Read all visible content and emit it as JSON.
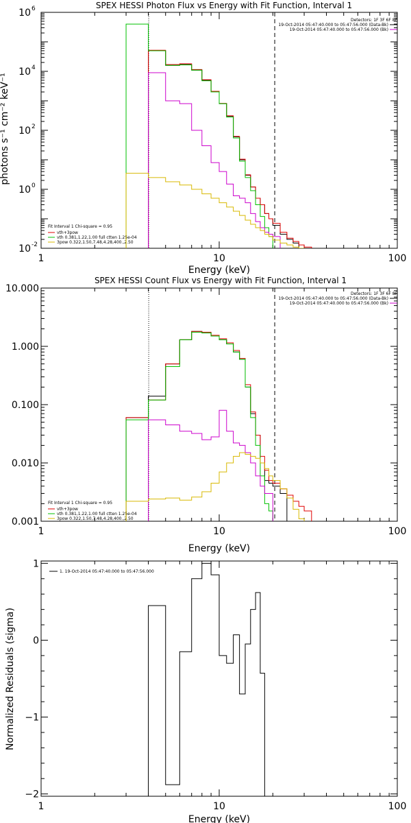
{
  "chart_data": [
    {
      "type": "line",
      "title": "SPEX HESSI Photon Flux vs Energy with Fit Function, Interval 1",
      "xlabel": "Energy (keV)",
      "ylabel": "photons s⁻¹ cm⁻² keV⁻¹",
      "xscale": "log",
      "yscale": "log",
      "xlim": [
        1,
        100
      ],
      "ylim": [
        0.01,
        1000000
      ],
      "xticks": [
        {
          "v": 1,
          "label": "1"
        },
        {
          "v": 10,
          "label": "10"
        },
        {
          "v": 100,
          "label": "100"
        }
      ],
      "yticks": [
        {
          "v": 0.01,
          "base": "10",
          "exp": "-2"
        },
        {
          "v": 1,
          "base": "10",
          "exp": "0"
        },
        {
          "v": 100,
          "base": "10",
          "exp": "2"
        },
        {
          "v": 10000,
          "base": "10",
          "exp": "4"
        },
        {
          "v": 1000000,
          "base": "10",
          "exp": "6"
        }
      ],
      "legend_right": {
        "title": "Detectors: 1F 3F 6F 8F",
        "entries": [
          {
            "label": "19-Oct-2014 05:47:40.000 to 05:47:56.000 (Data-Bk)",
            "color": "#000000"
          },
          {
            "label": "19-Oct-2014 05:47:40.000 to 05:47:56.000 (Bk)",
            "color": "#cc00cc"
          }
        ]
      },
      "legend_left": {
        "title": "Fit Interval  1    Chi-square = 0.95",
        "entries": [
          {
            "label": "vth+3pow",
            "color": "#e00000"
          },
          {
            "label": "vth 0.381,1.22,1.00  full ctten 1.25e-04",
            "color": "#00c000"
          },
          {
            "label": "3pow 0.322,1.50,7.48,4.28,400.,2.50",
            "color": "#d8b800"
          }
        ]
      },
      "vlines": [
        {
          "x": 4.02,
          "style": "dotted"
        },
        {
          "x": 20.5,
          "style": "dashed"
        }
      ],
      "bin_edges": [
        3.0,
        4.0,
        5.0,
        6.0,
        7.0,
        8.0,
        9.0,
        10.0,
        11.0,
        12.0,
        13.0,
        14.0,
        15.0,
        16.0,
        17.0,
        18.0,
        19.0,
        20.0,
        22.0,
        24.0,
        26.0,
        28.0,
        30.0,
        33.0,
        36.0,
        40.0
      ],
      "series": [
        {
          "name": "Data-Bk",
          "color": "#000000",
          "values": [
            null,
            50000,
            16000,
            17000,
            11000,
            5000,
            2000,
            800,
            300,
            60,
            10,
            3.0,
            1.2,
            0.5,
            0.3,
            0.15,
            0.1,
            0.06,
            0.03,
            0.02,
            0.015,
            null,
            null,
            null,
            null
          ]
        },
        {
          "name": "vth+3pow",
          "color": "#e00000",
          "values": [
            null,
            52000,
            17000,
            18000,
            11500,
            5200,
            2100,
            820,
            310,
            62,
            10.5,
            3.1,
            1.2,
            0.5,
            0.3,
            0.15,
            0.1,
            0.07,
            0.035,
            0.022,
            0.017,
            0.013,
            0.011,
            null,
            null
          ]
        },
        {
          "name": "vth",
          "color": "#00c000",
          "values": [
            400000,
            50000,
            16000,
            16500,
            11000,
            4800,
            2000,
            800,
            280,
            55,
            9,
            2.5,
            0.9,
            0.3,
            0.12,
            0.05,
            0.025,
            null,
            null,
            null,
            null,
            null,
            null,
            null,
            null
          ]
        },
        {
          "name": "Bk",
          "color": "#cc00cc",
          "values": [
            null,
            9000,
            1000,
            800,
            100,
            30,
            8,
            4,
            1.5,
            0.6,
            0.5,
            0.35,
            0.15,
            0.08,
            0.05,
            0.035,
            0.03,
            0.025,
            null,
            null,
            null,
            null,
            null,
            null,
            null
          ]
        },
        {
          "name": "3pow",
          "color": "#d8b800",
          "values": [
            3.5,
            2.5,
            1.8,
            1.4,
            1.0,
            0.7,
            0.5,
            0.35,
            0.25,
            0.18,
            0.13,
            0.09,
            0.065,
            0.05,
            0.04,
            0.03,
            0.025,
            0.019,
            0.015,
            0.013,
            0.011,
            0.01,
            null,
            null,
            null
          ]
        }
      ]
    },
    {
      "type": "line",
      "title": "SPEX HESSI Count Flux vs Energy with Fit Function, Interval 1",
      "xlabel": "Energy (keV)",
      "ylabel": "",
      "xscale": "log",
      "yscale": "log",
      "xlim": [
        1,
        100
      ],
      "ylim": [
        0.001,
        10
      ],
      "xticks": [
        {
          "v": 1,
          "label": "1"
        },
        {
          "v": 10,
          "label": "10"
        },
        {
          "v": 100,
          "label": "100"
        }
      ],
      "yticks": [
        {
          "v": 0.001,
          "label": "0.001"
        },
        {
          "v": 0.01,
          "label": "0.010"
        },
        {
          "v": 0.1,
          "label": "0.100"
        },
        {
          "v": 1,
          "label": "1.000"
        },
        {
          "v": 10,
          "label": "10.000"
        }
      ],
      "legend_right": {
        "title": "Detectors: 1F 3F 6F 8F",
        "entries": [
          {
            "label": "19-Oct-2014 05:47:40.000 to 05:47:56.000 (Data-Bk)",
            "color": "#000000"
          },
          {
            "label": "19-Oct-2014 05:47:40.000 to 05:47:56.000 (Bk)",
            "color": "#cc00cc"
          }
        ]
      },
      "legend_left": {
        "title": "Fit Interval  1    Chi-square = 0.95",
        "entries": [
          {
            "label": "vth+3pow",
            "color": "#e00000"
          },
          {
            "label": "vth 0.381,1.22,1.00  full ctten 1.25e-04",
            "color": "#00c000"
          },
          {
            "label": "3pow 0.322,1.50,7.48,4.28,400.,2.50",
            "color": "#d8b800"
          }
        ]
      },
      "vlines": [
        {
          "x": 4.02,
          "style": "dotted"
        },
        {
          "x": 20.5,
          "style": "dashed"
        }
      ],
      "bin_edges": [
        3.0,
        4.0,
        5.0,
        6.0,
        7.0,
        8.0,
        9.0,
        10.0,
        11.0,
        12.0,
        13.0,
        14.0,
        15.0,
        16.0,
        17.0,
        18.0,
        19.0,
        20.0,
        22.0,
        24.0,
        26.0,
        28.0,
        30.0,
        33.0,
        36.0,
        40.0
      ],
      "series": [
        {
          "name": "Data-Bk",
          "color": "#000000",
          "values": [
            0.06,
            0.14,
            0.5,
            1.3,
            1.8,
            1.7,
            1.5,
            1.3,
            1.1,
            0.8,
            0.6,
            0.2,
            0.07,
            0.03,
            0.01,
            0.005,
            0.0045,
            0.004,
            0.003,
            null,
            null,
            null,
            null,
            null,
            null
          ]
        },
        {
          "name": "vth+3pow",
          "color": "#e00000",
          "values": [
            0.06,
            0.12,
            0.5,
            1.3,
            1.8,
            1.75,
            1.55,
            1.35,
            1.15,
            0.85,
            0.62,
            0.22,
            0.075,
            0.03,
            0.013,
            0.0075,
            0.005,
            0.0045,
            0.0036,
            0.0028,
            0.0022,
            0.0018,
            0.0015,
            null,
            null
          ]
        },
        {
          "name": "vth",
          "color": "#00c000",
          "values": [
            0.055,
            0.12,
            0.45,
            1.3,
            1.75,
            1.7,
            1.5,
            1.3,
            1.1,
            0.8,
            0.6,
            0.2,
            0.06,
            0.02,
            0.006,
            0.002,
            0.0015,
            null,
            null,
            null,
            null,
            null,
            null,
            null,
            null
          ]
        },
        {
          "name": "Bk",
          "color": "#cc00cc",
          "values": [
            null,
            0.055,
            0.045,
            0.035,
            0.032,
            0.025,
            0.028,
            0.08,
            0.035,
            0.022,
            0.02,
            0.015,
            0.01,
            0.006,
            0.004,
            0.003,
            0.003,
            null,
            null,
            null,
            null,
            null,
            null,
            null,
            null
          ]
        },
        {
          "name": "3pow",
          "color": "#d8b800",
          "values": [
            0.0022,
            0.0024,
            0.0025,
            0.0023,
            0.0026,
            0.0032,
            0.0045,
            0.007,
            0.01,
            0.013,
            0.015,
            0.014,
            0.013,
            0.012,
            0.01,
            0.008,
            0.006,
            0.005,
            0.0036,
            0.0025,
            0.0016,
            0.0011,
            null,
            null,
            null
          ]
        }
      ]
    },
    {
      "type": "line",
      "title": "",
      "xlabel": "Energy (keV)",
      "ylabel": "Normalized Residuals (sigma)",
      "xscale": "log",
      "yscale": "linear",
      "xlim": [
        1,
        100
      ],
      "ylim": [
        -2.03,
        1.03
      ],
      "xticks": [
        {
          "v": 1,
          "label": "1"
        },
        {
          "v": 10,
          "label": "10"
        },
        {
          "v": 100,
          "label": "100"
        }
      ],
      "yticks": [
        {
          "v": -2,
          "label": "−2"
        },
        {
          "v": -1,
          "label": "−1"
        },
        {
          "v": 0,
          "label": "0"
        },
        {
          "v": 1,
          "label": "1"
        }
      ],
      "legend_left": {
        "title": "",
        "entries": [
          {
            "label": "1. 19-Oct-2014 05:47:40.000 to 05:47:56.000",
            "color": "#000000"
          }
        ]
      },
      "bin_edges": [
        4.0,
        5.0,
        6.0,
        7.0,
        8.0,
        9.0,
        10.0,
        11.0,
        12.0,
        13.0,
        14.0,
        15.0,
        16.0,
        17.0,
        18.0,
        19.0,
        20.0
      ],
      "series": [
        {
          "name": "residuals",
          "color": "#000000",
          "values": [
            0.45,
            -1.88,
            -0.15,
            0.8,
            1.0,
            0.85,
            -0.2,
            -0.3,
            0.07,
            -0.7,
            -0.05,
            0.4,
            0.62,
            -0.43,
            null,
            null
          ]
        }
      ]
    }
  ]
}
